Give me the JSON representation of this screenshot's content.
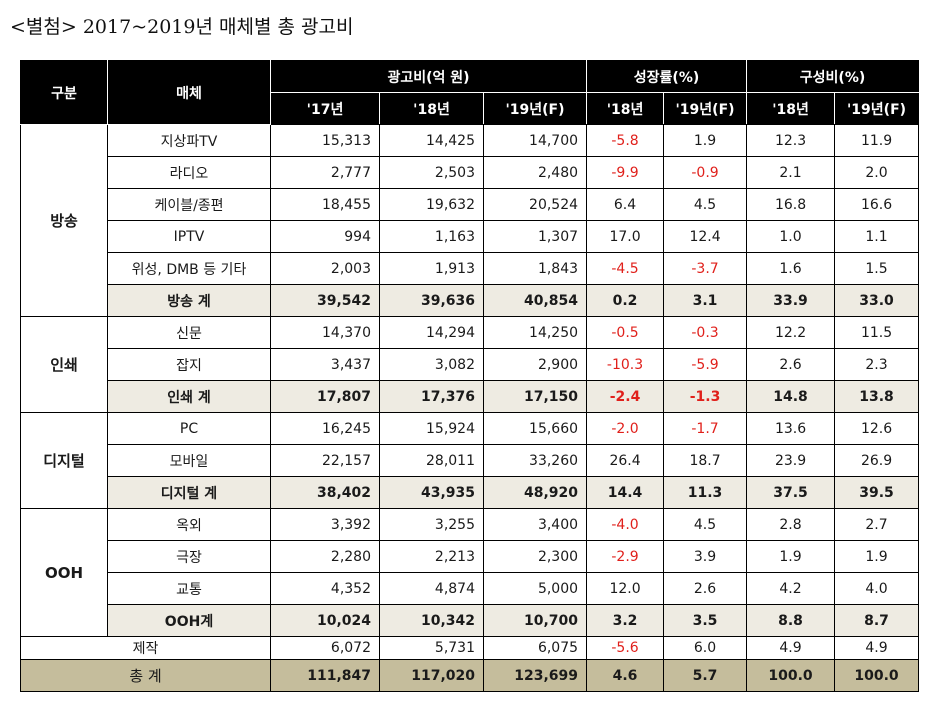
{
  "title": "<별첨> 2017~2019년  매체별  총  광고비",
  "header": {
    "col_category": "구분",
    "col_media": "매체",
    "group_adspend": "광고비(억 원)",
    "group_growth": "성장률(%)",
    "group_share": "구성비(%)",
    "adspend_years": [
      "'17년",
      "'18년",
      "'19년(F)"
    ],
    "growth_years": [
      "'18년",
      "'19년(F)"
    ],
    "share_years": [
      "'18년",
      "'19년(F)"
    ]
  },
  "colors": {
    "header_bg": "#000000",
    "subtotal_bg": "#eeebe2",
    "total_bg": "#c5bd9c",
    "negative": "#e0201b"
  },
  "groups": [
    {
      "name": "방송",
      "rows": [
        {
          "media": "지상파TV",
          "y17": "15,313",
          "y18": "14,425",
          "y19": "14,700",
          "g18": "-5.8",
          "g19": "1.9",
          "s18": "12.3",
          "s19": "11.9"
        },
        {
          "media": "라디오",
          "y17": "2,777",
          "y18": "2,503",
          "y19": "2,480",
          "g18": "-9.9",
          "g19": "-0.9",
          "s18": "2.1",
          "s19": "2.0"
        },
        {
          "media": "케이블/종편",
          "y17": "18,455",
          "y18": "19,632",
          "y19": "20,524",
          "g18": "6.4",
          "g19": "4.5",
          "s18": "16.8",
          "s19": "16.6"
        },
        {
          "media": "IPTV",
          "y17": "994",
          "y18": "1,163",
          "y19": "1,307",
          "g18": "17.0",
          "g19": "12.4",
          "s18": "1.0",
          "s19": "1.1"
        },
        {
          "media": "위성, DMB 등 기타",
          "y17": "2,003",
          "y18": "1,913",
          "y19": "1,843",
          "g18": "-4.5",
          "g19": "-3.7",
          "s18": "1.6",
          "s19": "1.5"
        }
      ],
      "subtotal": {
        "media": "방송 계",
        "y17": "39,542",
        "y18": "39,636",
        "y19": "40,854",
        "g18": "0.2",
        "g19": "3.1",
        "s18": "33.9",
        "s19": "33.0"
      }
    },
    {
      "name": "인쇄",
      "rows": [
        {
          "media": "신문",
          "y17": "14,370",
          "y18": "14,294",
          "y19": "14,250",
          "g18": "-0.5",
          "g19": "-0.3",
          "s18": "12.2",
          "s19": "11.5"
        },
        {
          "media": "잡지",
          "y17": "3,437",
          "y18": "3,082",
          "y19": "2,900",
          "g18": "-10.3",
          "g19": "-5.9",
          "s18": "2.6",
          "s19": "2.3"
        }
      ],
      "subtotal": {
        "media": "인쇄 계",
        "y17": "17,807",
        "y18": "17,376",
        "y19": "17,150",
        "g18": "-2.4",
        "g19": "-1.3",
        "s18": "14.8",
        "s19": "13.8"
      }
    },
    {
      "name": "디지털",
      "rows": [
        {
          "media": "PC",
          "y17": "16,245",
          "y18": "15,924",
          "y19": "15,660",
          "g18": "-2.0",
          "g19": "-1.7",
          "s18": "13.6",
          "s19": "12.6"
        },
        {
          "media": "모바일",
          "y17": "22,157",
          "y18": "28,011",
          "y19": "33,260",
          "g18": "26.4",
          "g19": "18.7",
          "s18": "23.9",
          "s19": "26.9"
        }
      ],
      "subtotal": {
        "media": "디지털 계",
        "y17": "38,402",
        "y18": "43,935",
        "y19": "48,920",
        "g18": "14.4",
        "g19": "11.3",
        "s18": "37.5",
        "s19": "39.5"
      }
    },
    {
      "name": "OOH",
      "rows": [
        {
          "media": "옥외",
          "y17": "3,392",
          "y18": "3,255",
          "y19": "3,400",
          "g18": "-4.0",
          "g19": "4.5",
          "s18": "2.8",
          "s19": "2.7"
        },
        {
          "media": "극장",
          "y17": "2,280",
          "y18": "2,213",
          "y19": "2,300",
          "g18": "-2.9",
          "g19": "3.9",
          "s18": "1.9",
          "s19": "1.9"
        },
        {
          "media": "교통",
          "y17": "4,352",
          "y18": "4,874",
          "y19": "5,000",
          "g18": "12.0",
          "g19": "2.6",
          "s18": "4.2",
          "s19": "4.0"
        }
      ],
      "subtotal": {
        "media": "OOH계",
        "y17": "10,024",
        "y18": "10,342",
        "y19": "10,700",
        "g18": "3.2",
        "g19": "3.5",
        "s18": "8.8",
        "s19": "8.7"
      }
    }
  ],
  "production": {
    "media": "제작",
    "y17": "6,072",
    "y18": "5,731",
    "y19": "6,075",
    "g18": "-5.6",
    "g19": "6.0",
    "s18": "4.9",
    "s19": "4.9"
  },
  "total": {
    "media": "총 계",
    "y17": "111,847",
    "y18": "117,020",
    "y19": "123,699",
    "g18": "4.6",
    "g19": "5.7",
    "s18": "100.0",
    "s19": "100.0"
  }
}
